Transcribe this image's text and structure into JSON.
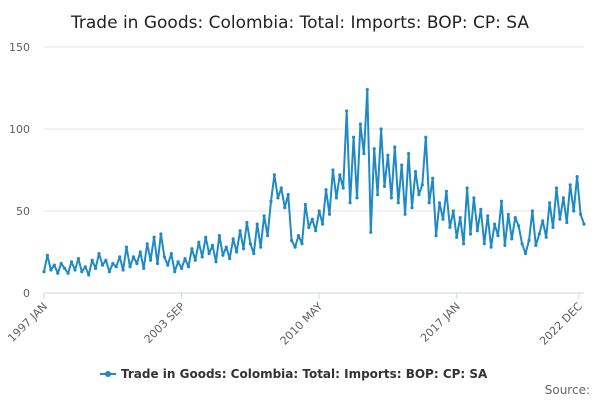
{
  "chart_data": {
    "type": "line",
    "title": "Trade in Goods: Colombia: Total: Imports: BOP: CP: SA",
    "xlabel": "",
    "ylabel": "",
    "ylim": [
      0,
      150
    ],
    "yticks": [
      0,
      50,
      100,
      150
    ],
    "x_range": [
      "1997-01",
      "2023-03"
    ],
    "xticks": [
      {
        "date": "1997-01",
        "label": "1997 JAN"
      },
      {
        "date": "2003-09",
        "label": "2003 SEP"
      },
      {
        "date": "2010-05",
        "label": "2010 MAY"
      },
      {
        "date": "2017-01",
        "label": "2017 JAN"
      },
      {
        "date": "2022-12",
        "label": "2022 DEC"
      }
    ],
    "grid": true,
    "legend": "bottom-center",
    "series": [
      {
        "name": "Trade in Goods: Colombia: Total: Imports: BOP: CP: SA",
        "color": "#1f8ac4",
        "points": [
          [
            "1997-01",
            13
          ],
          [
            "1997-03",
            23
          ],
          [
            "1997-05",
            14
          ],
          [
            "1997-07",
            17
          ],
          [
            "1997-09",
            12
          ],
          [
            "1997-11",
            18
          ],
          [
            "1998-01",
            15
          ],
          [
            "1998-03",
            12
          ],
          [
            "1998-05",
            19
          ],
          [
            "1998-07",
            14
          ],
          [
            "1998-09",
            21
          ],
          [
            "1998-11",
            13
          ],
          [
            "1999-01",
            16
          ],
          [
            "1999-03",
            11
          ],
          [
            "1999-05",
            20
          ],
          [
            "1999-07",
            15
          ],
          [
            "1999-09",
            24
          ],
          [
            "1999-11",
            17
          ],
          [
            "2000-01",
            20
          ],
          [
            "2000-03",
            13
          ],
          [
            "2000-05",
            18
          ],
          [
            "2000-07",
            16
          ],
          [
            "2000-09",
            22
          ],
          [
            "2000-11",
            14
          ],
          [
            "2001-01",
            28
          ],
          [
            "2001-03",
            16
          ],
          [
            "2001-05",
            22
          ],
          [
            "2001-07",
            18
          ],
          [
            "2001-09",
            25
          ],
          [
            "2001-11",
            15
          ],
          [
            "2002-01",
            30
          ],
          [
            "2002-03",
            20
          ],
          [
            "2002-05",
            34
          ],
          [
            "2002-07",
            18
          ],
          [
            "2002-09",
            36
          ],
          [
            "2002-11",
            22
          ],
          [
            "2003-01",
            17
          ],
          [
            "2003-03",
            24
          ],
          [
            "2003-05",
            13
          ],
          [
            "2003-07",
            19
          ],
          [
            "2003-09",
            15
          ],
          [
            "2003-11",
            21
          ],
          [
            "2004-01",
            16
          ],
          [
            "2004-03",
            27
          ],
          [
            "2004-05",
            20
          ],
          [
            "2004-07",
            31
          ],
          [
            "2004-09",
            22
          ],
          [
            "2004-11",
            34
          ],
          [
            "2005-01",
            24
          ],
          [
            "2005-03",
            29
          ],
          [
            "2005-05",
            19
          ],
          [
            "2005-07",
            35
          ],
          [
            "2005-09",
            23
          ],
          [
            "2005-11",
            28
          ],
          [
            "2006-01",
            21
          ],
          [
            "2006-03",
            33
          ],
          [
            "2006-05",
            25
          ],
          [
            "2006-07",
            38
          ],
          [
            "2006-09",
            27
          ],
          [
            "2006-11",
            43
          ],
          [
            "2007-01",
            30
          ],
          [
            "2007-03",
            24
          ],
          [
            "2007-05",
            42
          ],
          [
            "2007-07",
            28
          ],
          [
            "2007-09",
            47
          ],
          [
            "2007-11",
            35
          ],
          [
            "2008-01",
            56
          ],
          [
            "2008-03",
            72
          ],
          [
            "2008-05",
            58
          ],
          [
            "2008-07",
            64
          ],
          [
            "2008-09",
            52
          ],
          [
            "2008-11",
            60
          ],
          [
            "2009-01",
            32
          ],
          [
            "2009-03",
            28
          ],
          [
            "2009-05",
            35
          ],
          [
            "2009-07",
            30
          ],
          [
            "2009-09",
            54
          ],
          [
            "2009-11",
            40
          ],
          [
            "2010-01",
            45
          ],
          [
            "2010-03",
            38
          ],
          [
            "2010-05",
            50
          ],
          [
            "2010-07",
            42
          ],
          [
            "2010-09",
            63
          ],
          [
            "2010-11",
            48
          ],
          [
            "2011-01",
            75
          ],
          [
            "2011-03",
            58
          ],
          [
            "2011-05",
            72
          ],
          [
            "2011-07",
            64
          ],
          [
            "2011-09",
            111
          ],
          [
            "2011-11",
            55
          ],
          [
            "2012-01",
            95
          ],
          [
            "2012-03",
            58
          ],
          [
            "2012-05",
            103
          ],
          [
            "2012-07",
            85
          ],
          [
            "2012-09",
            124
          ],
          [
            "2012-11",
            37
          ],
          [
            "2013-01",
            88
          ],
          [
            "2013-03",
            60
          ],
          [
            "2013-05",
            100
          ],
          [
            "2013-07",
            65
          ],
          [
            "2013-09",
            84
          ],
          [
            "2013-11",
            58
          ],
          [
            "2014-01",
            89
          ],
          [
            "2014-03",
            55
          ],
          [
            "2014-05",
            78
          ],
          [
            "2014-07",
            48
          ],
          [
            "2014-09",
            85
          ],
          [
            "2014-11",
            52
          ],
          [
            "2015-01",
            74
          ],
          [
            "2015-03",
            60
          ],
          [
            "2015-05",
            66
          ],
          [
            "2015-07",
            95
          ],
          [
            "2015-09",
            55
          ],
          [
            "2015-11",
            70
          ],
          [
            "2016-01",
            35
          ],
          [
            "2016-03",
            55
          ],
          [
            "2016-05",
            45
          ],
          [
            "2016-07",
            62
          ],
          [
            "2016-09",
            40
          ],
          [
            "2016-11",
            50
          ],
          [
            "2017-01",
            34
          ],
          [
            "2017-03",
            46
          ],
          [
            "2017-05",
            30
          ],
          [
            "2017-07",
            64
          ],
          [
            "2017-09",
            36
          ],
          [
            "2017-11",
            58
          ],
          [
            "2018-01",
            38
          ],
          [
            "2018-03",
            51
          ],
          [
            "2018-05",
            30
          ],
          [
            "2018-07",
            47
          ],
          [
            "2018-09",
            28
          ],
          [
            "2018-11",
            42
          ],
          [
            "2019-01",
            35
          ],
          [
            "2019-03",
            56
          ],
          [
            "2019-05",
            29
          ],
          [
            "2019-07",
            48
          ],
          [
            "2019-09",
            33
          ],
          [
            "2019-11",
            46
          ],
          [
            "2020-01",
            41
          ],
          [
            "2020-03",
            30
          ],
          [
            "2020-05",
            24
          ],
          [
            "2020-07",
            32
          ],
          [
            "2020-09",
            50
          ],
          [
            "2020-11",
            29
          ],
          [
            "2021-01",
            36
          ],
          [
            "2021-03",
            44
          ],
          [
            "2021-05",
            34
          ],
          [
            "2021-07",
            55
          ],
          [
            "2021-09",
            40
          ],
          [
            "2021-11",
            64
          ],
          [
            "2022-01",
            45
          ],
          [
            "2022-03",
            58
          ],
          [
            "2022-05",
            43
          ],
          [
            "2022-07",
            66
          ],
          [
            "2022-09",
            50
          ],
          [
            "2022-11",
            71
          ],
          [
            "2023-01",
            48
          ],
          [
            "2023-03",
            42
          ]
        ]
      }
    ]
  },
  "legend_label": "Trade in Goods: Colombia: Total: Imports: BOP: CP: SA",
  "source_label": "Source:"
}
